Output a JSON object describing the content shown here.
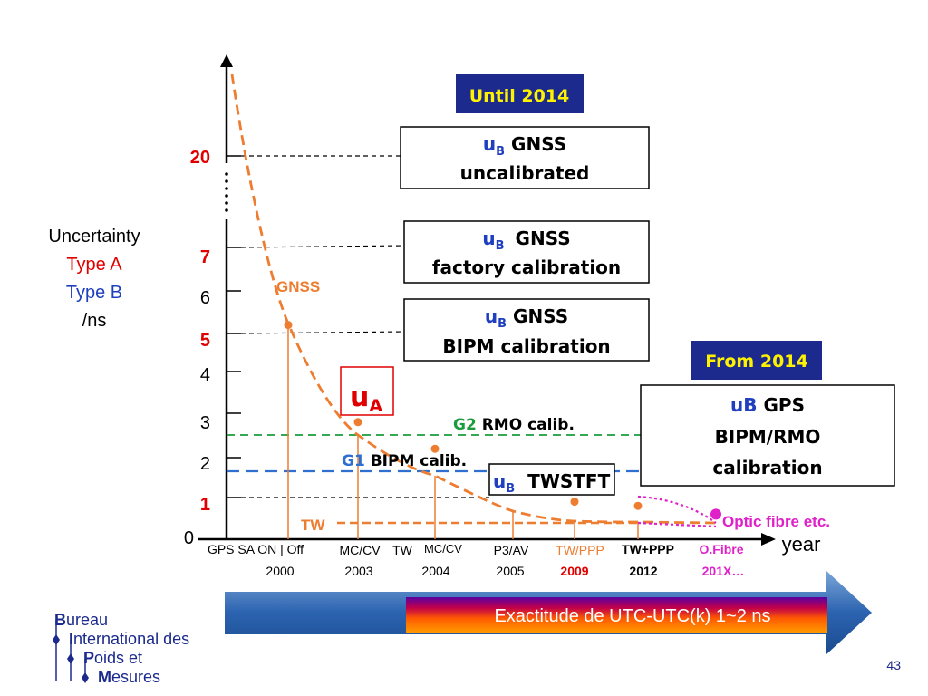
{
  "slide_number": "43",
  "colors": {
    "orange": "#ed7d31",
    "red": "#e00000",
    "blue": "#1f3fbf",
    "green": "#1a9c3c",
    "dblue": "#2e6fd0",
    "magenta": "#e020c8",
    "navy": "#1b2a8c",
    "gold": "#fff200"
  },
  "axis": {
    "ylabel": [
      "Uncertainty",
      "Type A",
      "Type B",
      "/ns"
    ],
    "xlabel": "year",
    "zero": "0",
    "ticks": [
      {
        "label": "20",
        "color": "red"
      },
      {
        "label": "7",
        "color": "red"
      },
      {
        "label": "6",
        "color": "black"
      },
      {
        "label": "5",
        "color": "red"
      },
      {
        "label": "4",
        "color": "black"
      },
      {
        "label": "3",
        "color": "black"
      },
      {
        "label": "2",
        "color": "black"
      },
      {
        "label": "1",
        "color": "red"
      }
    ]
  },
  "until_label": "Until 2014",
  "from_label": "From 2014",
  "boxes": {
    "b1": {
      "u": "u",
      "sub": "B",
      "main": "GNSS",
      "second": "uncalibrated"
    },
    "b2": {
      "u": "u",
      "sub": "B",
      "main": "GNSS",
      "second": "factory calibration"
    },
    "b3": {
      "u": "u",
      "sub": "B",
      "main": "GNSS",
      "second": "BIPM calibration"
    },
    "b4": {
      "u": "uB",
      "main": "GPS",
      "second": "BIPM/RMO",
      "third": "calibration"
    },
    "tw": {
      "u": "u",
      "sub": "B",
      "main": "TWSTFT"
    }
  },
  "ua_label": {
    "u": "u",
    "sub": "A"
  },
  "curve_labels": {
    "gnss": "GNSS",
    "tw": "TW",
    "optic": "Optic fibre etc."
  },
  "calib": {
    "g2": {
      "g": "G2",
      "rest": " RMO calib."
    },
    "g1": {
      "g": "G1",
      "rest": " BIPM calib."
    }
  },
  "events": [
    {
      "top": "GPS SA ON | Off",
      "year": "2000"
    },
    {
      "top": "MC/CV",
      "year": "2003"
    },
    {
      "top": "TW",
      "top2": "MC/CV",
      "year": "2004"
    },
    {
      "top": "P3/AV",
      "year": "2005"
    },
    {
      "top": "TW/PPP",
      "year": "2009"
    },
    {
      "top": "TW+PPP",
      "year": "2012"
    },
    {
      "top": "O.Fibre",
      "year": "201X…"
    }
  ],
  "banner": "Exactitude de UTC-UTC(k) 1~2 ns",
  "logo": {
    "line1": {
      "initial": "B",
      "rest": "ureau"
    },
    "line2": {
      "initial": "I",
      "rest": "nternational des"
    },
    "line3": {
      "initial": "P",
      "rest": "oids et"
    },
    "line4": {
      "initial": "M",
      "rest": "esures"
    }
  },
  "chart_data": {
    "type": "line",
    "title": "",
    "ylabel": "Uncertainty Type A / Type B /ns",
    "xlabel": "year",
    "categories": [
      "2000",
      "2003",
      "2004",
      "2005",
      "2009",
      "2012",
      "201X…"
    ],
    "series": [
      {
        "name": "uA (GNSS / TW)",
        "values": [
          5.2,
          2.8,
          2.2,
          1.3,
          0.9,
          0.8,
          0.6
        ]
      }
    ],
    "reference_lines": [
      {
        "name": "uB GNSS uncalibrated",
        "value": 20
      },
      {
        "name": "uB GNSS factory calibration",
        "value": 7
      },
      {
        "name": "uB GNSS BIPM calibration",
        "value": 5
      },
      {
        "name": "G2 RMO calib.",
        "value": 2.8
      },
      {
        "name": "G1 BIPM calib.",
        "value": 2.3
      },
      {
        "name": "uB TWSTFT",
        "value": 1
      }
    ],
    "ytick_labels": [
      "0",
      "1",
      "2",
      "3",
      "4",
      "5",
      "6",
      "7",
      "20"
    ]
  }
}
